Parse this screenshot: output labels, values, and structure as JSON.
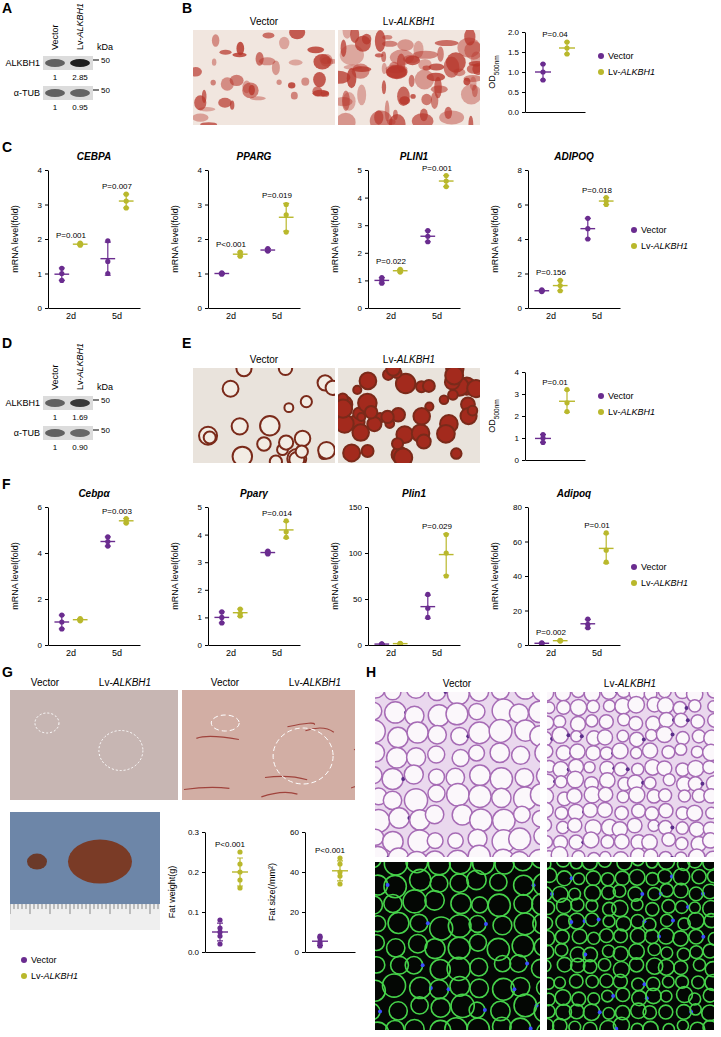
{
  "chart_data": [
    {
      "type": "dot",
      "y_label": "OD500nm",
      "categories": [
        null
      ],
      "ylim": [
        0,
        2
      ],
      "yticks": [
        {
          "value": 0,
          "label": "0.0"
        },
        0.5,
        {
          "value": 1,
          "label": "1.0"
        },
        1.5,
        {
          "value": 2,
          "label": "2.0"
        }
      ],
      "legend": "right",
      "series": [
        {
          "name": "Vector",
          "color": "#6a2c8f",
          "values": [
            1.0
          ],
          "error": [
            0.2
          ],
          "points": [
            [
              0.8,
              1.0,
              1.2
            ]
          ]
        },
        {
          "name": "Lv-ALKBH1",
          "color": "#b9b82c",
          "values": [
            1.6
          ],
          "error": [
            0.15
          ],
          "points": [
            [
              1.45,
              1.6,
              1.75
            ]
          ]
        }
      ],
      "annotations": [
        {
          "category": null,
          "text": "P=0.04"
        }
      ]
    },
    {
      "type": "dot",
      "title": "CEBPA",
      "y_label": "mRNA level(fold)",
      "categories": [
        "2d",
        "5d"
      ],
      "ylim": [
        0,
        4
      ],
      "yticks": [
        0,
        1,
        2,
        3,
        4
      ],
      "series": [
        {
          "color": "#6a2c8f",
          "values": [
            0.98,
            1.43
          ],
          "error": [
            0.18,
            0.48
          ],
          "points": [
            [
              0.8,
              1.0,
              1.15
            ],
            [
              1.0,
              1.35,
              1.95
            ]
          ]
        },
        {
          "color": "#b9b82c",
          "values": [
            1.85,
            3.1
          ],
          "error": [
            0.03,
            0.2
          ],
          "points": [
            [
              1.82,
              1.85,
              1.88
            ],
            [
              2.9,
              3.1,
              3.3
            ]
          ]
        }
      ],
      "annotations": [
        {
          "category": "2d",
          "text": "P=0.001"
        },
        {
          "category": "5d",
          "text": "P=0.007"
        }
      ]
    },
    {
      "type": "dot",
      "title": "PPARG",
      "y_label": "mRNA level(fold)",
      "categories": [
        "2d",
        "5d"
      ],
      "ylim": [
        0,
        4
      ],
      "yticks": [
        0,
        1,
        2,
        3,
        4
      ],
      "series": [
        {
          "color": "#6a2c8f",
          "values": [
            1.0,
            1.68
          ],
          "error": [
            0.02,
            0.04
          ],
          "points": [
            [
              0.98,
              1.0,
              1.02
            ],
            [
              1.65,
              1.68,
              1.72
            ]
          ]
        },
        {
          "color": "#b9b82c",
          "values": [
            1.56,
            2.63
          ],
          "error": [
            0.06,
            0.4
          ],
          "points": [
            [
              1.5,
              1.55,
              1.62
            ],
            [
              2.2,
              2.7,
              3.0
            ]
          ]
        }
      ],
      "annotations": [
        {
          "category": "2d",
          "text": "P<0.001"
        },
        {
          "category": "5d",
          "text": "P=0.019"
        }
      ]
    },
    {
      "type": "dot",
      "title": "PLIN1",
      "y_label": "mRNA level(fold)",
      "categories": [
        "2d",
        "5d"
      ],
      "ylim": [
        0,
        5
      ],
      "yticks": [
        0,
        1,
        2,
        3,
        4,
        5
      ],
      "series": [
        {
          "color": "#6a2c8f",
          "values": [
            1.0,
            2.6
          ],
          "error": [
            0.1,
            0.2
          ],
          "points": [
            [
              0.9,
              1.0,
              1.1
            ],
            [
              2.4,
              2.6,
              2.8
            ]
          ]
        },
        {
          "color": "#b9b82c",
          "values": [
            1.35,
            4.6
          ],
          "error": [
            0.05,
            0.2
          ],
          "points": [
            [
              1.3,
              1.35,
              1.4
            ],
            [
              4.4,
              4.6,
              4.8
            ]
          ]
        }
      ],
      "annotations": [
        {
          "category": "2d",
          "text": "P=0.022"
        },
        {
          "category": "5d",
          "text": "P=0.001"
        }
      ]
    },
    {
      "type": "dot",
      "title": "ADIPOQ",
      "y_label": "mRNA level(fold)",
      "categories": [
        "2d",
        "5d"
      ],
      "ylim": [
        0,
        8
      ],
      "yticks": [
        0,
        2,
        4,
        6,
        8
      ],
      "legend": "right",
      "series": [
        {
          "name": "Vector",
          "color": "#6a2c8f",
          "values": [
            1.0,
            4.6
          ],
          "error": [
            0.05,
            0.6
          ],
          "points": [
            [
              0.95,
              1.0,
              1.05
            ],
            [
              4.0,
              4.6,
              5.2
            ]
          ]
        },
        {
          "name": "Lv-ALKBH1",
          "color": "#b9b82c",
          "values": [
            1.3,
            6.2
          ],
          "error": [
            0.3,
            0.2
          ],
          "points": [
            [
              1.0,
              1.3,
              1.6
            ],
            [
              6.0,
              6.2,
              6.4
            ]
          ]
        }
      ],
      "annotations": [
        {
          "category": "2d",
          "text": "P=0.156"
        },
        {
          "category": "5d",
          "text": "P=0.018"
        }
      ]
    },
    {
      "type": "dot",
      "y_label": "OD500nm",
      "categories": [
        null
      ],
      "ylim": [
        0,
        4
      ],
      "yticks": [
        0,
        1,
        2,
        3,
        4
      ],
      "legend": "right",
      "series": [
        {
          "name": "Vector",
          "color": "#6a2c8f",
          "values": [
            0.98
          ],
          "error": [
            0.18
          ],
          "points": [
            [
              0.8,
              1.0,
              1.15
            ]
          ]
        },
        {
          "name": "Lv-ALKBH1",
          "color": "#b9b82c",
          "values": [
            2.67
          ],
          "error": [
            0.5
          ],
          "points": [
            [
              2.2,
              2.6,
              3.2
            ]
          ]
        }
      ],
      "annotations": [
        {
          "category": null,
          "text": "P=0.01"
        }
      ]
    },
    {
      "type": "dot",
      "title": "Cebpα",
      "y_label": "mRNA level(fold)",
      "categories": [
        "2d",
        "5d"
      ],
      "ylim": [
        0,
        6
      ],
      "yticks": [
        0,
        2,
        4,
        6
      ],
      "series": [
        {
          "color": "#6a2c8f",
          "values": [
            1.0,
            4.5
          ],
          "error": [
            0.3,
            0.2
          ],
          "points": [
            [
              0.7,
              1.0,
              1.3
            ],
            [
              4.3,
              4.5,
              4.7
            ]
          ]
        },
        {
          "color": "#b9b82c",
          "values": [
            1.1,
            5.4
          ],
          "error": [
            0.05,
            0.1
          ],
          "points": [
            [
              1.05,
              1.1,
              1.15
            ],
            [
              5.3,
              5.4,
              5.5
            ]
          ]
        }
      ],
      "annotations": [
        {
          "category": "5d",
          "text": "P=0.003"
        }
      ]
    },
    {
      "type": "dot",
      "title": "Pparγ",
      "y_label": "mRNA level(fold)",
      "categories": [
        "2d",
        "5d"
      ],
      "ylim": [
        0,
        5
      ],
      "yticks": [
        0,
        1,
        2,
        3,
        4,
        5
      ],
      "series": [
        {
          "color": "#6a2c8f",
          "values": [
            1.0,
            3.35
          ],
          "error": [
            0.2,
            0.05
          ],
          "points": [
            [
              0.8,
              1.0,
              1.2
            ],
            [
              3.3,
              3.35,
              3.4
            ]
          ]
        },
        {
          "color": "#b9b82c",
          "values": [
            1.17,
            4.17
          ],
          "error": [
            0.13,
            0.3
          ],
          "points": [
            [
              1.05,
              1.15,
              1.3
            ],
            [
              3.9,
              4.1,
              4.5
            ]
          ]
        }
      ],
      "annotations": [
        {
          "category": "5d",
          "text": "P=0.014"
        }
      ]
    },
    {
      "type": "dot",
      "title": "Plin1",
      "y_label": "mRNA level(fold)",
      "categories": [
        "2d",
        "5d"
      ],
      "ylim": [
        0,
        150
      ],
      "yticks": [
        0,
        50,
        100,
        150
      ],
      "series": [
        {
          "color": "#6a2c8f",
          "values": [
            1.0,
            41.7
          ],
          "error": [
            0.2,
            12.6
          ],
          "points": [
            [
              0.8,
              1.0,
              1.2
            ],
            [
              30,
              40,
              55
            ]
          ]
        },
        {
          "color": "#b9b82c",
          "values": [
            1.5,
            98.3
          ],
          "error": [
            0.3,
            22.5
          ],
          "points": [
            [
              1.2,
              1.5,
              1.8
            ],
            [
              75,
              100,
              120
            ]
          ]
        }
      ],
      "annotations": [
        {
          "category": "5d",
          "text": "P=0.029"
        }
      ]
    },
    {
      "type": "dot",
      "title": "Adipoq",
      "y_label": "mRNA level(fold)",
      "categories": [
        "2d",
        "5d"
      ],
      "ylim": [
        0,
        80
      ],
      "yticks": [
        0,
        20,
        40,
        60,
        80
      ],
      "legend": "right",
      "series": [
        {
          "name": "Vector",
          "color": "#6a2c8f",
          "values": [
            1.0,
            12.3
          ],
          "error": [
            0.2,
            2.5
          ],
          "points": [
            [
              0.8,
              1.0,
              1.2
            ],
            [
              10,
              12,
              15
            ]
          ]
        },
        {
          "name": "Lv-ALKBH1",
          "color": "#b9b82c",
          "values": [
            2.5,
            56
          ],
          "error": [
            0.2,
            8.5
          ],
          "points": [
            [
              2.3,
              2.5,
              2.7
            ],
            [
              48,
              55,
              65
            ]
          ]
        }
      ],
      "annotations": [
        {
          "category": "2d",
          "text": "P=0.002"
        },
        {
          "category": "5d",
          "text": "P=0.01"
        }
      ]
    },
    {
      "type": "dot",
      "y_label": "Fat weight(g)",
      "categories": [
        null
      ],
      "ylim": [
        0,
        0.3
      ],
      "yticks": [
        {
          "value": 0,
          "label": "0.0"
        },
        0.1,
        0.2,
        0.3
      ],
      "legend": "bottom left",
      "series": [
        {
          "name": "Vector",
          "color": "#6a2c8f",
          "values": [
            0.05
          ],
          "error": [
            0.022
          ],
          "points": [
            [
              0.02,
              0.04,
              0.05,
              0.06,
              0.08
            ]
          ]
        },
        {
          "name": "Lv-ALKBH1",
          "color": "#b9b82c",
          "values": [
            0.2
          ],
          "error": [
            0.035
          ],
          "points": [
            [
              0.16,
              0.18,
              0.2,
              0.22,
              0.25
            ]
          ]
        }
      ],
      "annotations": [
        {
          "category": null,
          "text": "P<0.001"
        }
      ]
    },
    {
      "type": "dot",
      "y_label": "Fat size(/mm²)",
      "categories": [
        null
      ],
      "ylim": [
        0,
        60
      ],
      "yticks": [
        0,
        20,
        40,
        60
      ],
      "series": [
        {
          "color": "#6a2c8f",
          "values": [
            5.4
          ],
          "error": [
            2.1
          ],
          "points": [
            [
              3,
              4,
              5,
              7,
              8
            ]
          ]
        },
        {
          "color": "#b9b82c",
          "values": [
            40.6
          ],
          "error": [
            5
          ],
          "points": [
            [
              34,
              38,
              40,
              44,
              47
            ]
          ]
        }
      ],
      "annotations": [
        {
          "category": null,
          "text": "P<0.001"
        }
      ]
    }
  ],
  "figure": {
    "panel_labels": [
      "A",
      "B",
      "C",
      "D",
      "E",
      "F",
      "G",
      "H"
    ],
    "blots": [
      {
        "lanes": [
          "Vector",
          "Lv-ALKBH1"
        ],
        "unit": "kDa",
        "bands": [
          {
            "name": "ALKBH1",
            "marker": "50",
            "quant": [
              "1",
              "2.85"
            ]
          },
          {
            "name": "α-TUB",
            "marker": "50",
            "quant": [
              "1",
              "0.95"
            ]
          }
        ]
      },
      {
        "lanes": [
          "Vector",
          "Lv-ALKBH1"
        ],
        "unit": "kDa",
        "bands": [
          {
            "name": "ALKBH1",
            "marker": "50",
            "quant": [
              "1",
              "1.69"
            ]
          },
          {
            "name": "α-TUB",
            "marker": "50",
            "quant": [
              "1",
              "0.90"
            ]
          }
        ]
      }
    ],
    "images": [
      {
        "titles": [
          "Vector",
          "Lv-ALKBH1"
        ]
      },
      {
        "titles": [
          "Vector",
          "Lv-ALKBH1"
        ]
      },
      {
        "titles": [
          "Vector",
          "Lv-ALKBH1",
          "Vector",
          "Lv-ALKBH1"
        ]
      },
      {
        "titles": [
          "Vector",
          "Lv-ALKBH1"
        ]
      }
    ]
  }
}
